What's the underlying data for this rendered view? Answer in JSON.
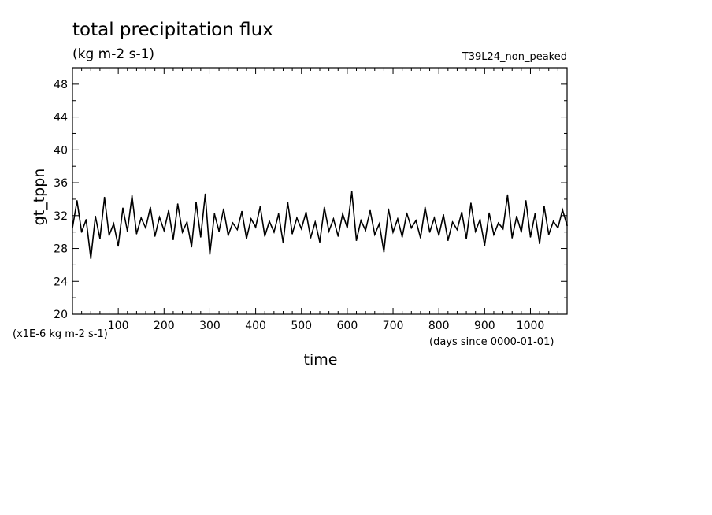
{
  "chart_data": {
    "type": "line",
    "title": "total precipitation flux",
    "subtitle": "(kg m-2 s-1)",
    "experiment": "T39L24_non_peaked",
    "xlabel": "time",
    "ylabel": "gt_tppn",
    "y_scale_note": "(x1E-6 kg m-2 s-1)",
    "x_units_note": "(days since 0000-01-01)",
    "xlim": [
      0,
      1080
    ],
    "ylim": [
      20,
      50
    ],
    "x_ticks": [
      100,
      200,
      300,
      400,
      500,
      600,
      700,
      800,
      900,
      1000
    ],
    "y_ticks": [
      20,
      24,
      28,
      32,
      36,
      40,
      44,
      48
    ],
    "grid": false,
    "series": [
      {
        "x": [
          0,
          10,
          20,
          30,
          40,
          50,
          60,
          70,
          80,
          90,
          100,
          110,
          120,
          130,
          140,
          150,
          160,
          170,
          180,
          190,
          200,
          210,
          220,
          230,
          240,
          250,
          260,
          270,
          280,
          290,
          300,
          310,
          320,
          330,
          340,
          350,
          360,
          370,
          380,
          390,
          400,
          410,
          420,
          430,
          440,
          450,
          460,
          470,
          480,
          490,
          500,
          510,
          520,
          530,
          540,
          550,
          560,
          570,
          580,
          590,
          600,
          610,
          620,
          630,
          640,
          650,
          660,
          670,
          680,
          690,
          700,
          710,
          720,
          730,
          740,
          750,
          760,
          770,
          780,
          790,
          800,
          810,
          820,
          830,
          840,
          850,
          860,
          870,
          880,
          890,
          900,
          910,
          920,
          930,
          940,
          950,
          960,
          970,
          980,
          990,
          1000,
          1010,
          1020,
          1030,
          1040,
          1050,
          1060,
          1070,
          1080
        ],
        "values": [
          30.5,
          33.8,
          30.0,
          31.5,
          26.8,
          31.9,
          29.2,
          34.2,
          29.6,
          31.0,
          28.3,
          32.9,
          30.1,
          34.4,
          29.8,
          31.7,
          30.5,
          33.0,
          29.5,
          31.8,
          30.2,
          32.6,
          29.1,
          33.4,
          30.0,
          31.2,
          28.2,
          33.6,
          29.4,
          34.6,
          27.3,
          32.2,
          30.1,
          32.8,
          29.6,
          31.1,
          30.3,
          32.5,
          29.2,
          31.6,
          30.6,
          33.1,
          29.5,
          31.3,
          30.0,
          32.2,
          28.7,
          33.6,
          29.8,
          31.7,
          30.4,
          32.4,
          29.3,
          31.2,
          28.8,
          33.0,
          30.1,
          31.6,
          29.5,
          32.2,
          30.5,
          34.9,
          29.0,
          31.4,
          30.2,
          32.6,
          29.7,
          31.0,
          27.6,
          32.8,
          30.0,
          31.6,
          29.4,
          32.3,
          30.5,
          31.4,
          29.3,
          33.0,
          30.0,
          31.7,
          29.6,
          32.1,
          29.0,
          31.2,
          30.3,
          32.4,
          29.2,
          33.5,
          30.1,
          31.5,
          28.4,
          32.3,
          29.7,
          31.1,
          30.4,
          34.5,
          29.3,
          31.9,
          30.0,
          33.8,
          29.4,
          32.2,
          28.6,
          33.1,
          29.7,
          31.3,
          30.5,
          32.7,
          30.8
        ]
      }
    ]
  }
}
